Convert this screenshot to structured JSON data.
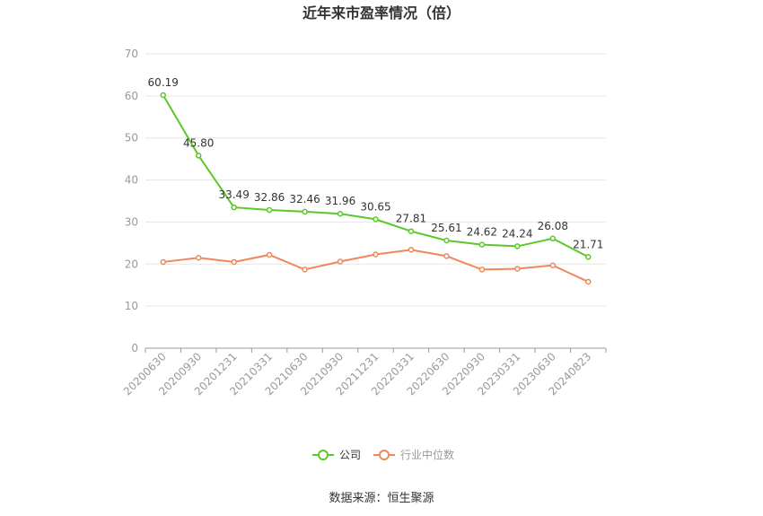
{
  "chart_data": {
    "type": "line",
    "title": "近年来市盈率情况（倍）",
    "categories": [
      "20200630",
      "20200930",
      "20201231",
      "20210331",
      "20210630",
      "20210930",
      "20211231",
      "20220331",
      "20220630",
      "20220930",
      "20230331",
      "20230630",
      "20240823"
    ],
    "ylim": [
      0,
      70
    ],
    "yticks": [
      0,
      10,
      20,
      30,
      40,
      50,
      60,
      70
    ],
    "grid": true,
    "legend_position": "bottom",
    "series": [
      {
        "name": "公司",
        "color": "#5ac828",
        "values": [
          60.19,
          45.8,
          33.49,
          32.86,
          32.46,
          31.96,
          30.65,
          27.81,
          25.61,
          24.62,
          24.24,
          26.08,
          21.71
        ],
        "labels": [
          "60.19",
          "45.80",
          "33.49",
          "32.86",
          "32.46",
          "31.96",
          "30.65",
          "27.81",
          "25.61",
          "24.62",
          "24.24",
          "26.08",
          "21.71"
        ]
      },
      {
        "name": "行业中位数",
        "color": "#f0875a",
        "values": [
          20.5,
          21.5,
          20.5,
          22.2,
          18.7,
          20.6,
          22.3,
          23.4,
          21.9,
          18.7,
          18.9,
          19.7,
          15.8
        ]
      }
    ]
  },
  "source": "数据来源：恒生聚源"
}
